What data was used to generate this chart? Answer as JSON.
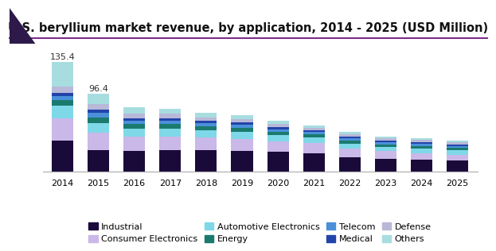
{
  "title": "U.S. beryllium market revenue, by application, 2014 - 2025 (USD Million)",
  "years": [
    2014,
    2015,
    2016,
    2017,
    2018,
    2019,
    2020,
    2021,
    2022,
    2023,
    2024,
    2025
  ],
  "categories": [
    "Industrial",
    "Consumer Electronics",
    "Automotive Electronics",
    "Energy",
    "Telecom",
    "Medical",
    "Defense",
    "Others"
  ],
  "colors": [
    "#1a0a3a",
    "#c9b8e8",
    "#7fd8e8",
    "#1a7a6e",
    "#4a90d9",
    "#2244aa",
    "#b8b8d8",
    "#a8dde0"
  ],
  "data": {
    "Industrial": [
      38,
      26,
      25,
      26,
      26,
      25,
      24,
      23,
      18,
      16,
      15,
      14
    ],
    "Consumer Electronics": [
      28,
      22,
      18,
      17,
      16,
      15,
      13,
      12,
      10,
      9,
      8,
      7
    ],
    "Automotive Electronics": [
      15,
      12,
      10,
      10,
      9,
      9,
      8,
      7,
      6,
      5,
      5,
      5
    ],
    "Energy": [
      7,
      7,
      6,
      6,
      5,
      5,
      4,
      4,
      4,
      3,
      3,
      3
    ],
    "Telecom": [
      5,
      5,
      4,
      4,
      4,
      4,
      3,
      3,
      3,
      3,
      3,
      2
    ],
    "Medical": [
      4,
      4,
      3,
      3,
      3,
      3,
      3,
      2,
      2,
      2,
      2,
      2
    ],
    "Defense": [
      8,
      7,
      5,
      5,
      4,
      4,
      4,
      3,
      3,
      3,
      3,
      3
    ],
    "Others": [
      30,
      13,
      8,
      6,
      5,
      4,
      4,
      3,
      3,
      2,
      2,
      2
    ]
  },
  "bar_annotations": {
    "2014": "135.4",
    "2015": "96.4"
  },
  "ylim": [
    0,
    150
  ],
  "background_color": "#ffffff",
  "title_fontsize": 10.5,
  "legend_fontsize": 8,
  "accent_line_color": "#7b2d8b",
  "triangle_color": "#2d1a4a"
}
